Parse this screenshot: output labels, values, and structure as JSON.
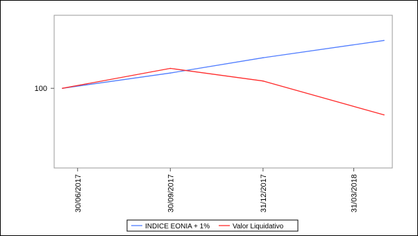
{
  "chart_data": {
    "type": "line",
    "x": [
      "2017-06-15",
      "2017-09-30",
      "2017-12-31",
      "2018-04-30"
    ],
    "x_ticks": [
      "30/06/2017",
      "30/09/2017",
      "31/12/2017",
      "31/03/2018"
    ],
    "y_ticks": [
      100
    ],
    "ylim": [
      88,
      111
    ],
    "grid": false,
    "legend_position": "bottom",
    "series": [
      {
        "name": "INDICE EONIA + 1%",
        "color": "#4f7cff",
        "values": [
          100,
          102.3,
          104.6,
          107.2
        ]
      },
      {
        "name": "Valor Liquidativo",
        "color": "#ff2a2a",
        "values": [
          100,
          103.0,
          101.1,
          96.0
        ]
      }
    ]
  }
}
